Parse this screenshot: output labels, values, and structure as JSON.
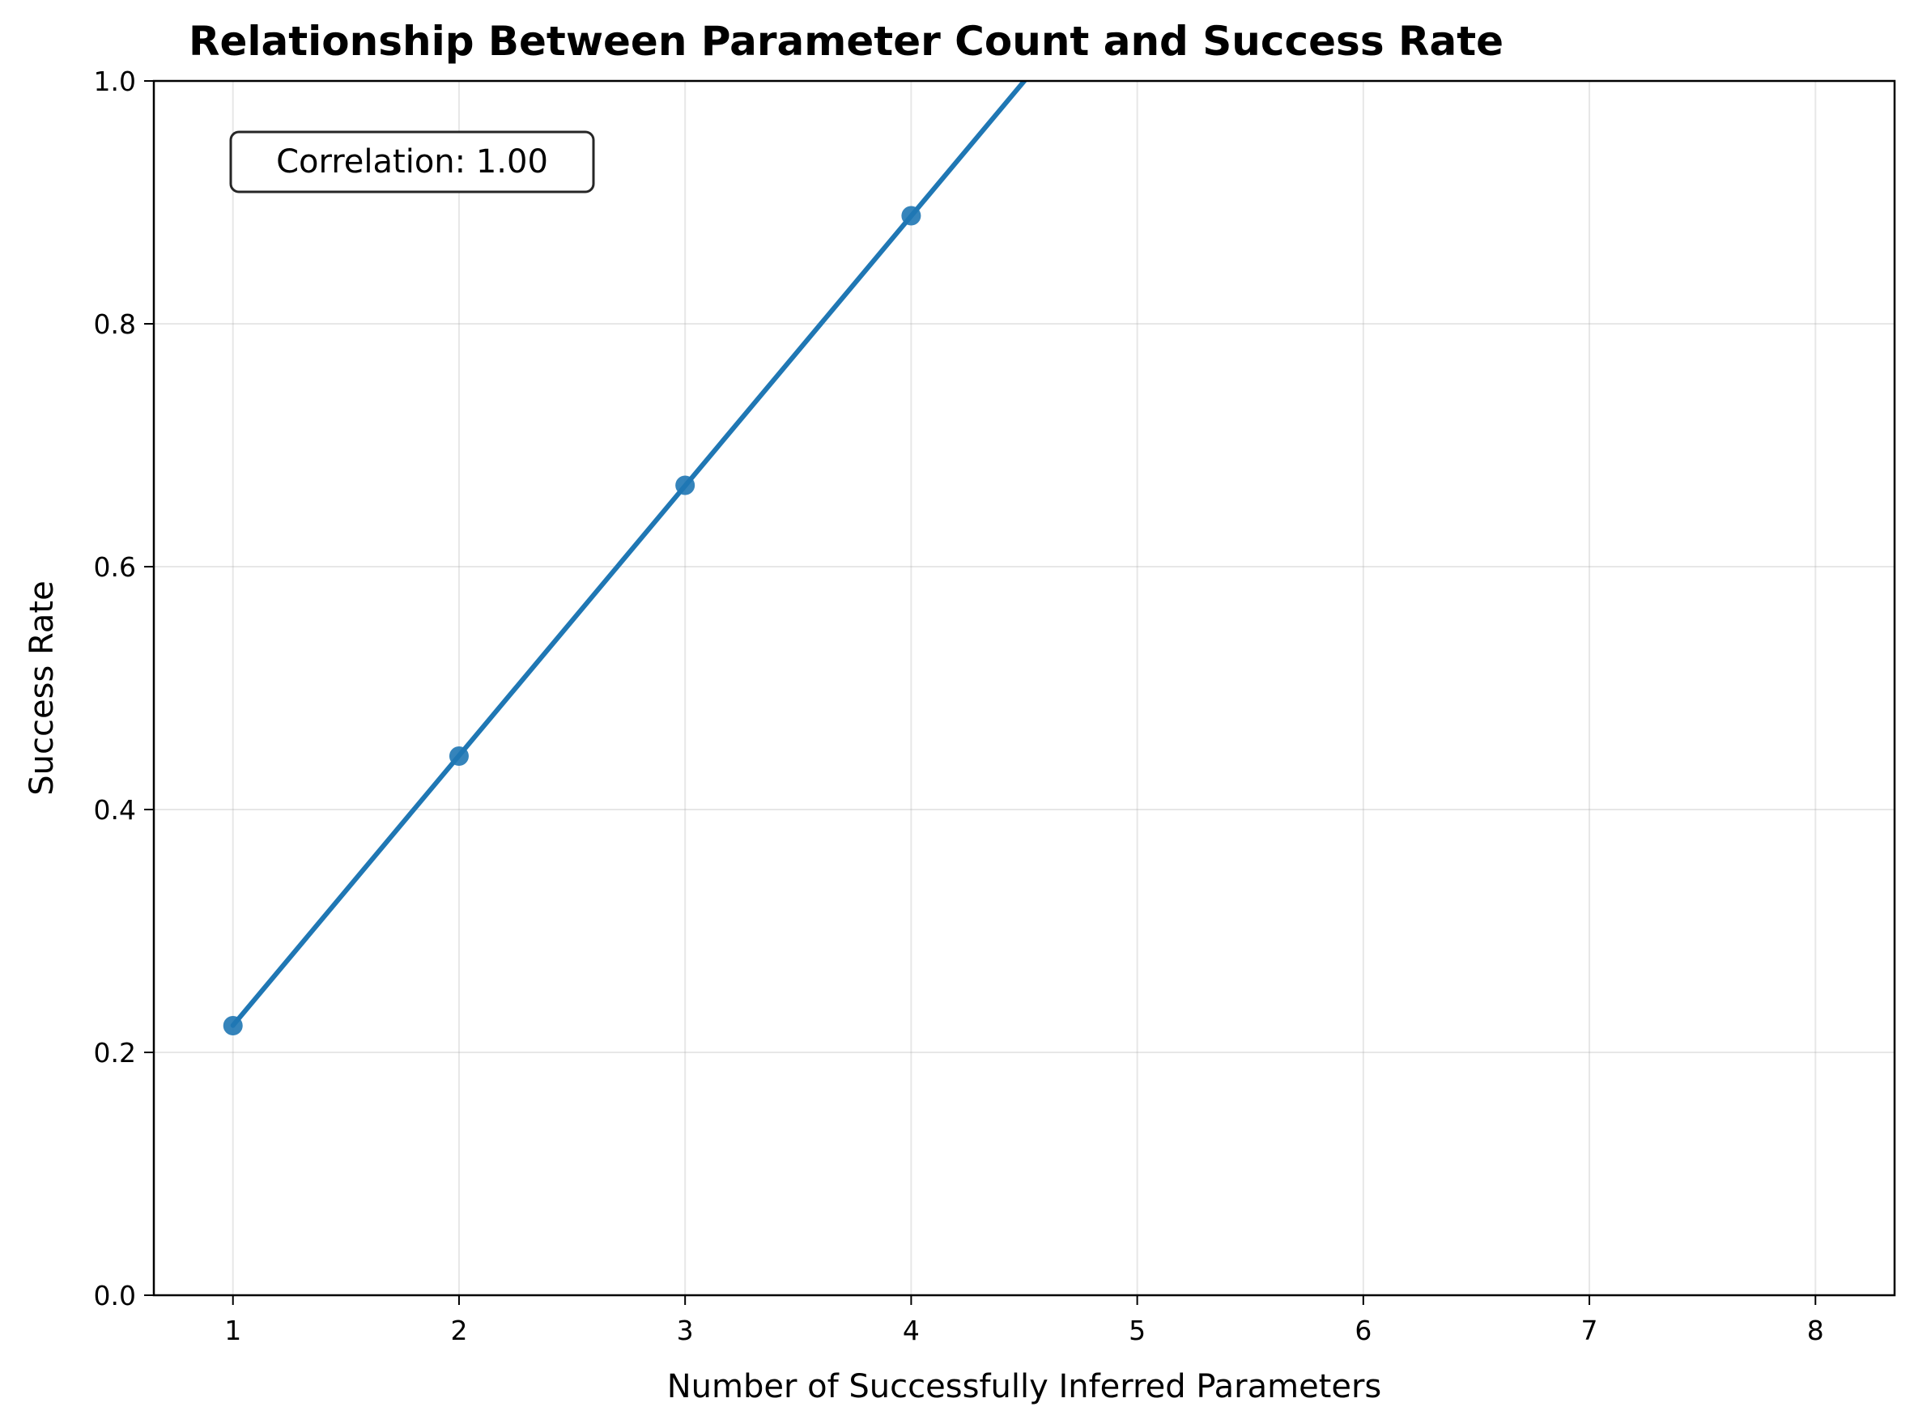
{
  "chart_data": {
    "type": "line",
    "title": "Relationship Between Parameter Count and Success Rate",
    "xlabel": "Number of Successfully Inferred Parameters",
    "ylabel": "Success Rate",
    "xlim": [
      0.65,
      8.35
    ],
    "ylim": [
      0,
      1.0
    ],
    "x_ticks": [
      1,
      2,
      3,
      4,
      5,
      6,
      7,
      8
    ],
    "x_tick_labels": [
      "1",
      "2",
      "3",
      "4",
      "5",
      "6",
      "7",
      "8"
    ],
    "y_ticks": [
      0.0,
      0.2,
      0.4,
      0.6,
      0.8,
      1.0
    ],
    "y_tick_labels": [
      "0.0",
      "0.2",
      "0.4",
      "0.6",
      "0.8",
      "1.0"
    ],
    "grid": true,
    "series": [
      {
        "x": [
          1,
          2,
          3,
          4
        ],
        "values": [
          0.222,
          0.444,
          0.667,
          0.889
        ],
        "color": "#1f77b4",
        "fit_line": {
          "slope": 0.2222,
          "intercept": 0.0
        }
      }
    ],
    "annotation": {
      "text": "Correlation: 1.00",
      "position": "top-left"
    }
  }
}
